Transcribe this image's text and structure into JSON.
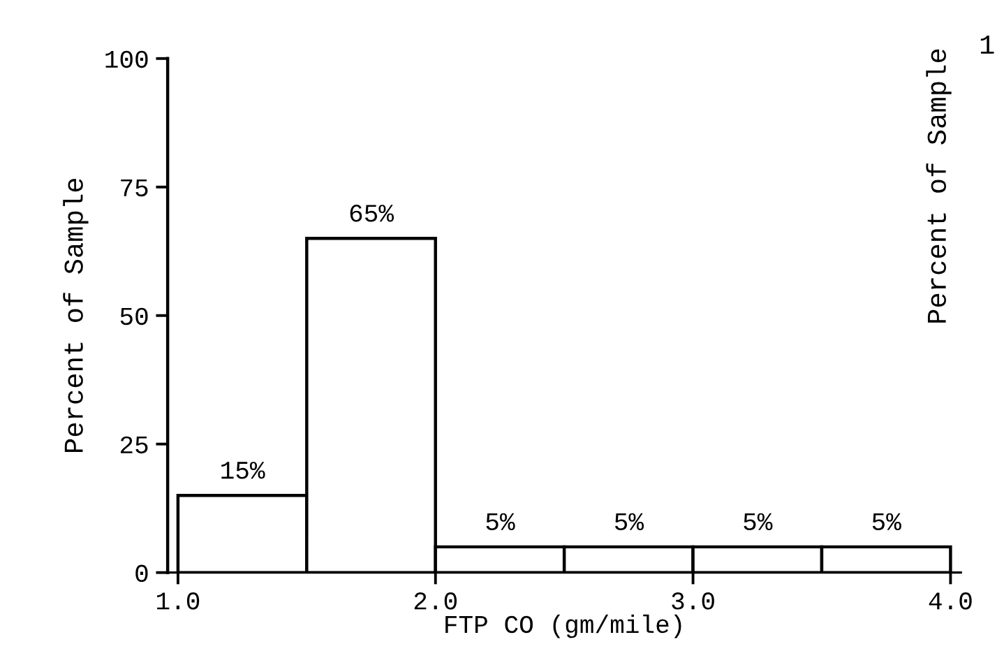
{
  "chart_data": {
    "type": "histogram",
    "xlabel": "FTP CO (gm/mile)",
    "ylabel": "Percent of Sample",
    "bins": [
      1.0,
      1.5,
      2.0,
      2.5,
      3.0,
      3.5,
      4.0
    ],
    "values": [
      15,
      65,
      5,
      5,
      5,
      5
    ],
    "value_labels": [
      "15%",
      "65%",
      "5%",
      "5%",
      "5%",
      "5%"
    ],
    "color": "#ffffff",
    "xlim": [
      0.96,
      4.04
    ],
    "ylim": [
      0,
      100
    ],
    "xticks": [
      {
        "value": 1.0,
        "label": "1.0"
      },
      {
        "value": 2.0,
        "label": "2.0"
      },
      {
        "value": 3.0,
        "label": "3.0"
      },
      {
        "value": 4.0,
        "label": "4.0"
      }
    ],
    "yticks": [
      0,
      25,
      50,
      75,
      100
    ],
    "grid": false,
    "annotations": [
      "Percent of Sample",
      "1"
    ]
  }
}
